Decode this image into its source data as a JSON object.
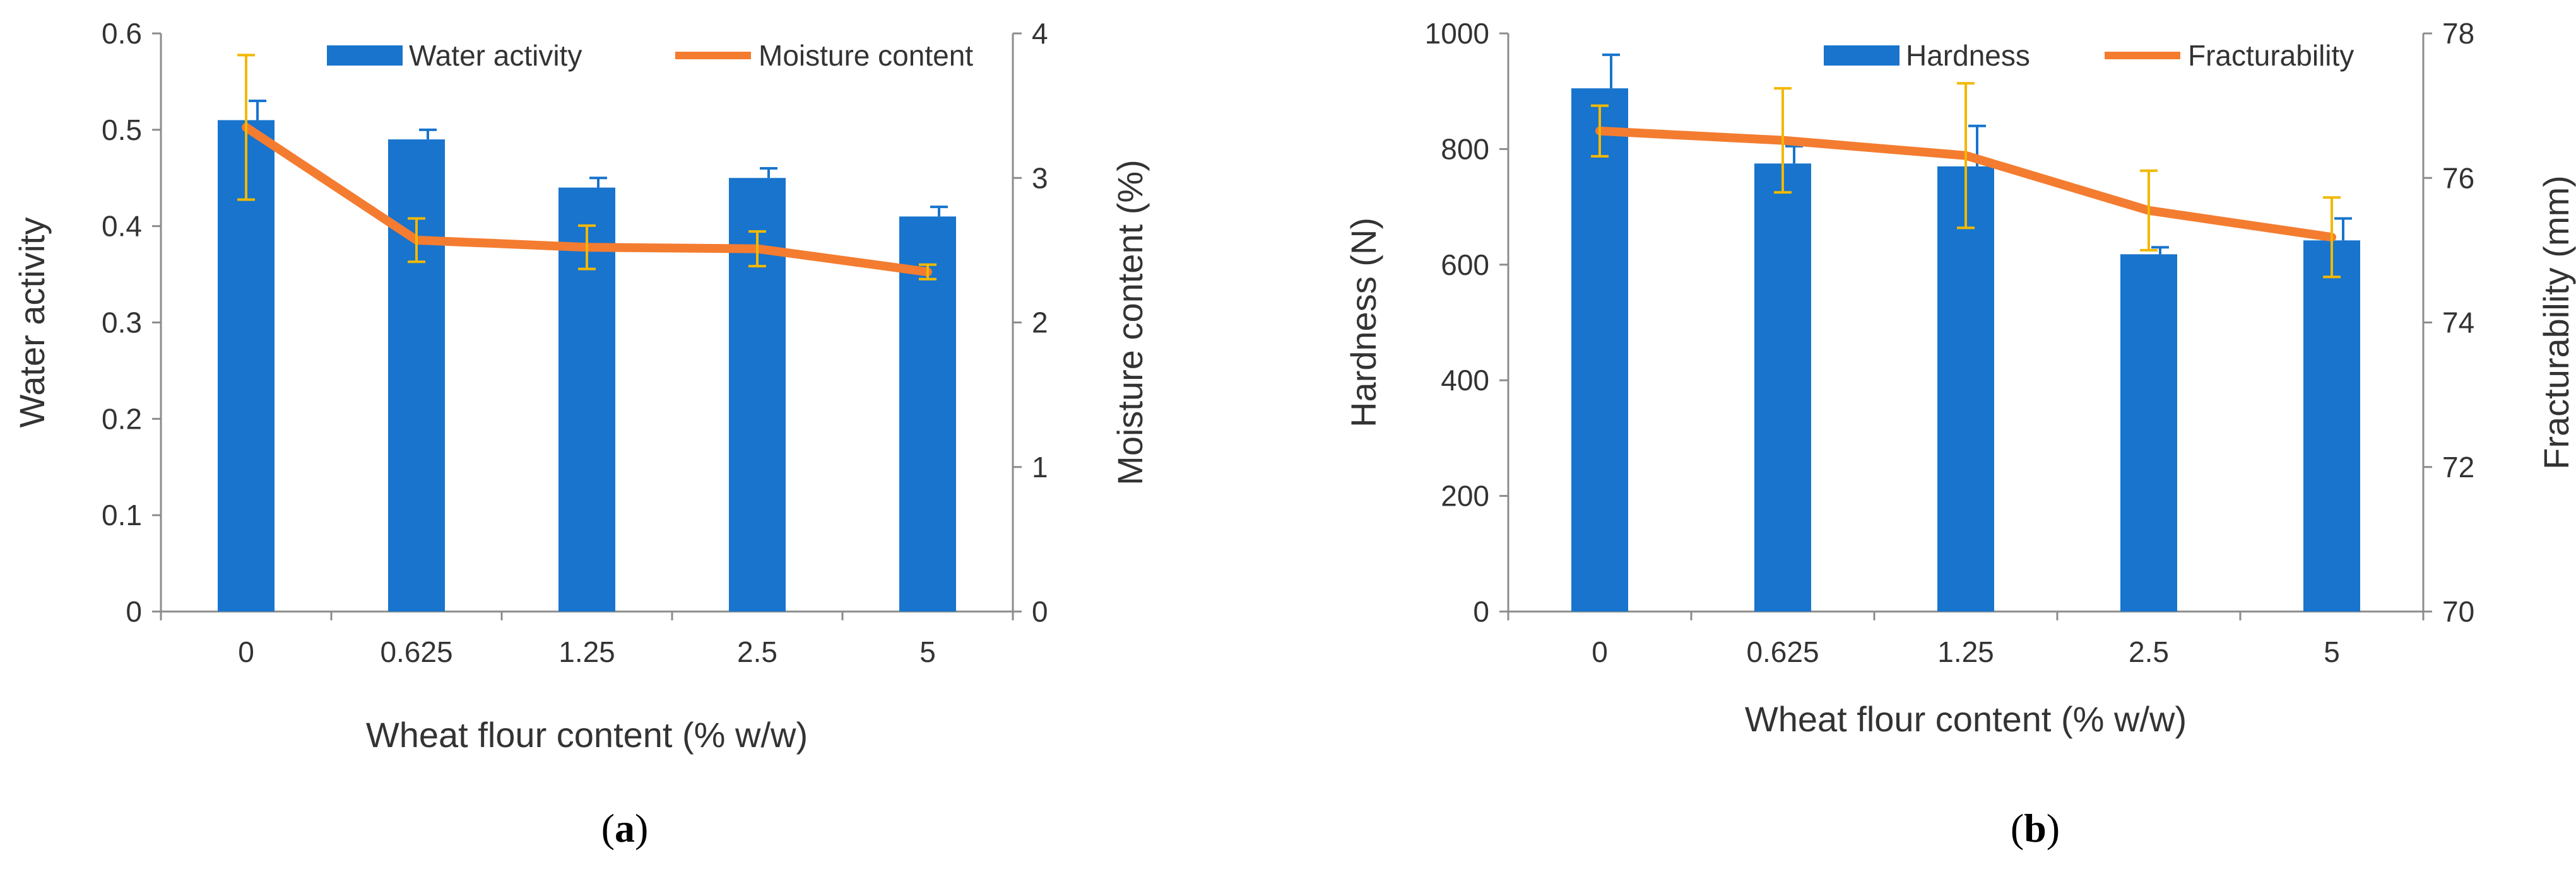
{
  "colors": {
    "bar": "#1874cd",
    "line": "#f47c30",
    "bar_err": "#1874cd",
    "line_err": "#f2b800",
    "axis": "#8c8c8c"
  },
  "chart_data": [
    {
      "type": "bar",
      "caption": "a",
      "xlabel": "Wheat flour content (% w/w)",
      "ylabel": "Water activity",
      "y2label": "Moisture content (%)",
      "categories": [
        "0",
        "0.625",
        "1.25",
        "2.5",
        "5"
      ],
      "ylim": [
        0,
        0.6
      ],
      "yticks": [
        "0",
        "0.1",
        "0.2",
        "0.3",
        "0.4",
        "0.5",
        "0.6"
      ],
      "y2lim": [
        0,
        4
      ],
      "y2ticks": [
        "0",
        "1",
        "2",
        "3",
        "4"
      ],
      "legend": [
        "Water activity",
        "Moisture content"
      ],
      "series": [
        {
          "name": "Water activity",
          "kind": "bar",
          "axis": "left",
          "values": [
            0.51,
            0.49,
            0.44,
            0.45,
            0.41
          ],
          "errors": [
            0.02,
            0.01,
            0.01,
            0.01,
            0.01
          ]
        },
        {
          "name": "Moisture content",
          "kind": "line",
          "axis": "right",
          "values": [
            3.35,
            2.57,
            2.52,
            2.51,
            2.35
          ],
          "errors": [
            0.5,
            0.15,
            0.15,
            0.12,
            0.05
          ]
        }
      ]
    },
    {
      "type": "bar",
      "caption": "b",
      "xlabel": "Wheat flour content (% w/w)",
      "ylabel": "Hardness (N)",
      "y2label": "Fracturability (mm)",
      "categories": [
        "0",
        "0.625",
        "1.25",
        "2.5",
        "5"
      ],
      "ylim": [
        0,
        1000
      ],
      "yticks": [
        "0",
        "200",
        "400",
        "600",
        "800",
        "1000"
      ],
      "y2lim": [
        70,
        78
      ],
      "y2ticks": [
        "70",
        "72",
        "74",
        "76",
        "78"
      ],
      "legend": [
        "Hardness",
        "Fracturability"
      ],
      "series": [
        {
          "name": "Hardness",
          "kind": "bar",
          "axis": "left",
          "values": [
            905,
            775,
            770,
            618,
            642
          ],
          "errors": [
            58,
            30,
            70,
            12,
            38
          ]
        },
        {
          "name": "Fracturability",
          "kind": "line",
          "axis": "right",
          "values": [
            76.65,
            76.52,
            76.31,
            75.55,
            75.18
          ],
          "errors": [
            0.35,
            0.72,
            1.0,
            0.55,
            0.55
          ]
        }
      ]
    }
  ]
}
